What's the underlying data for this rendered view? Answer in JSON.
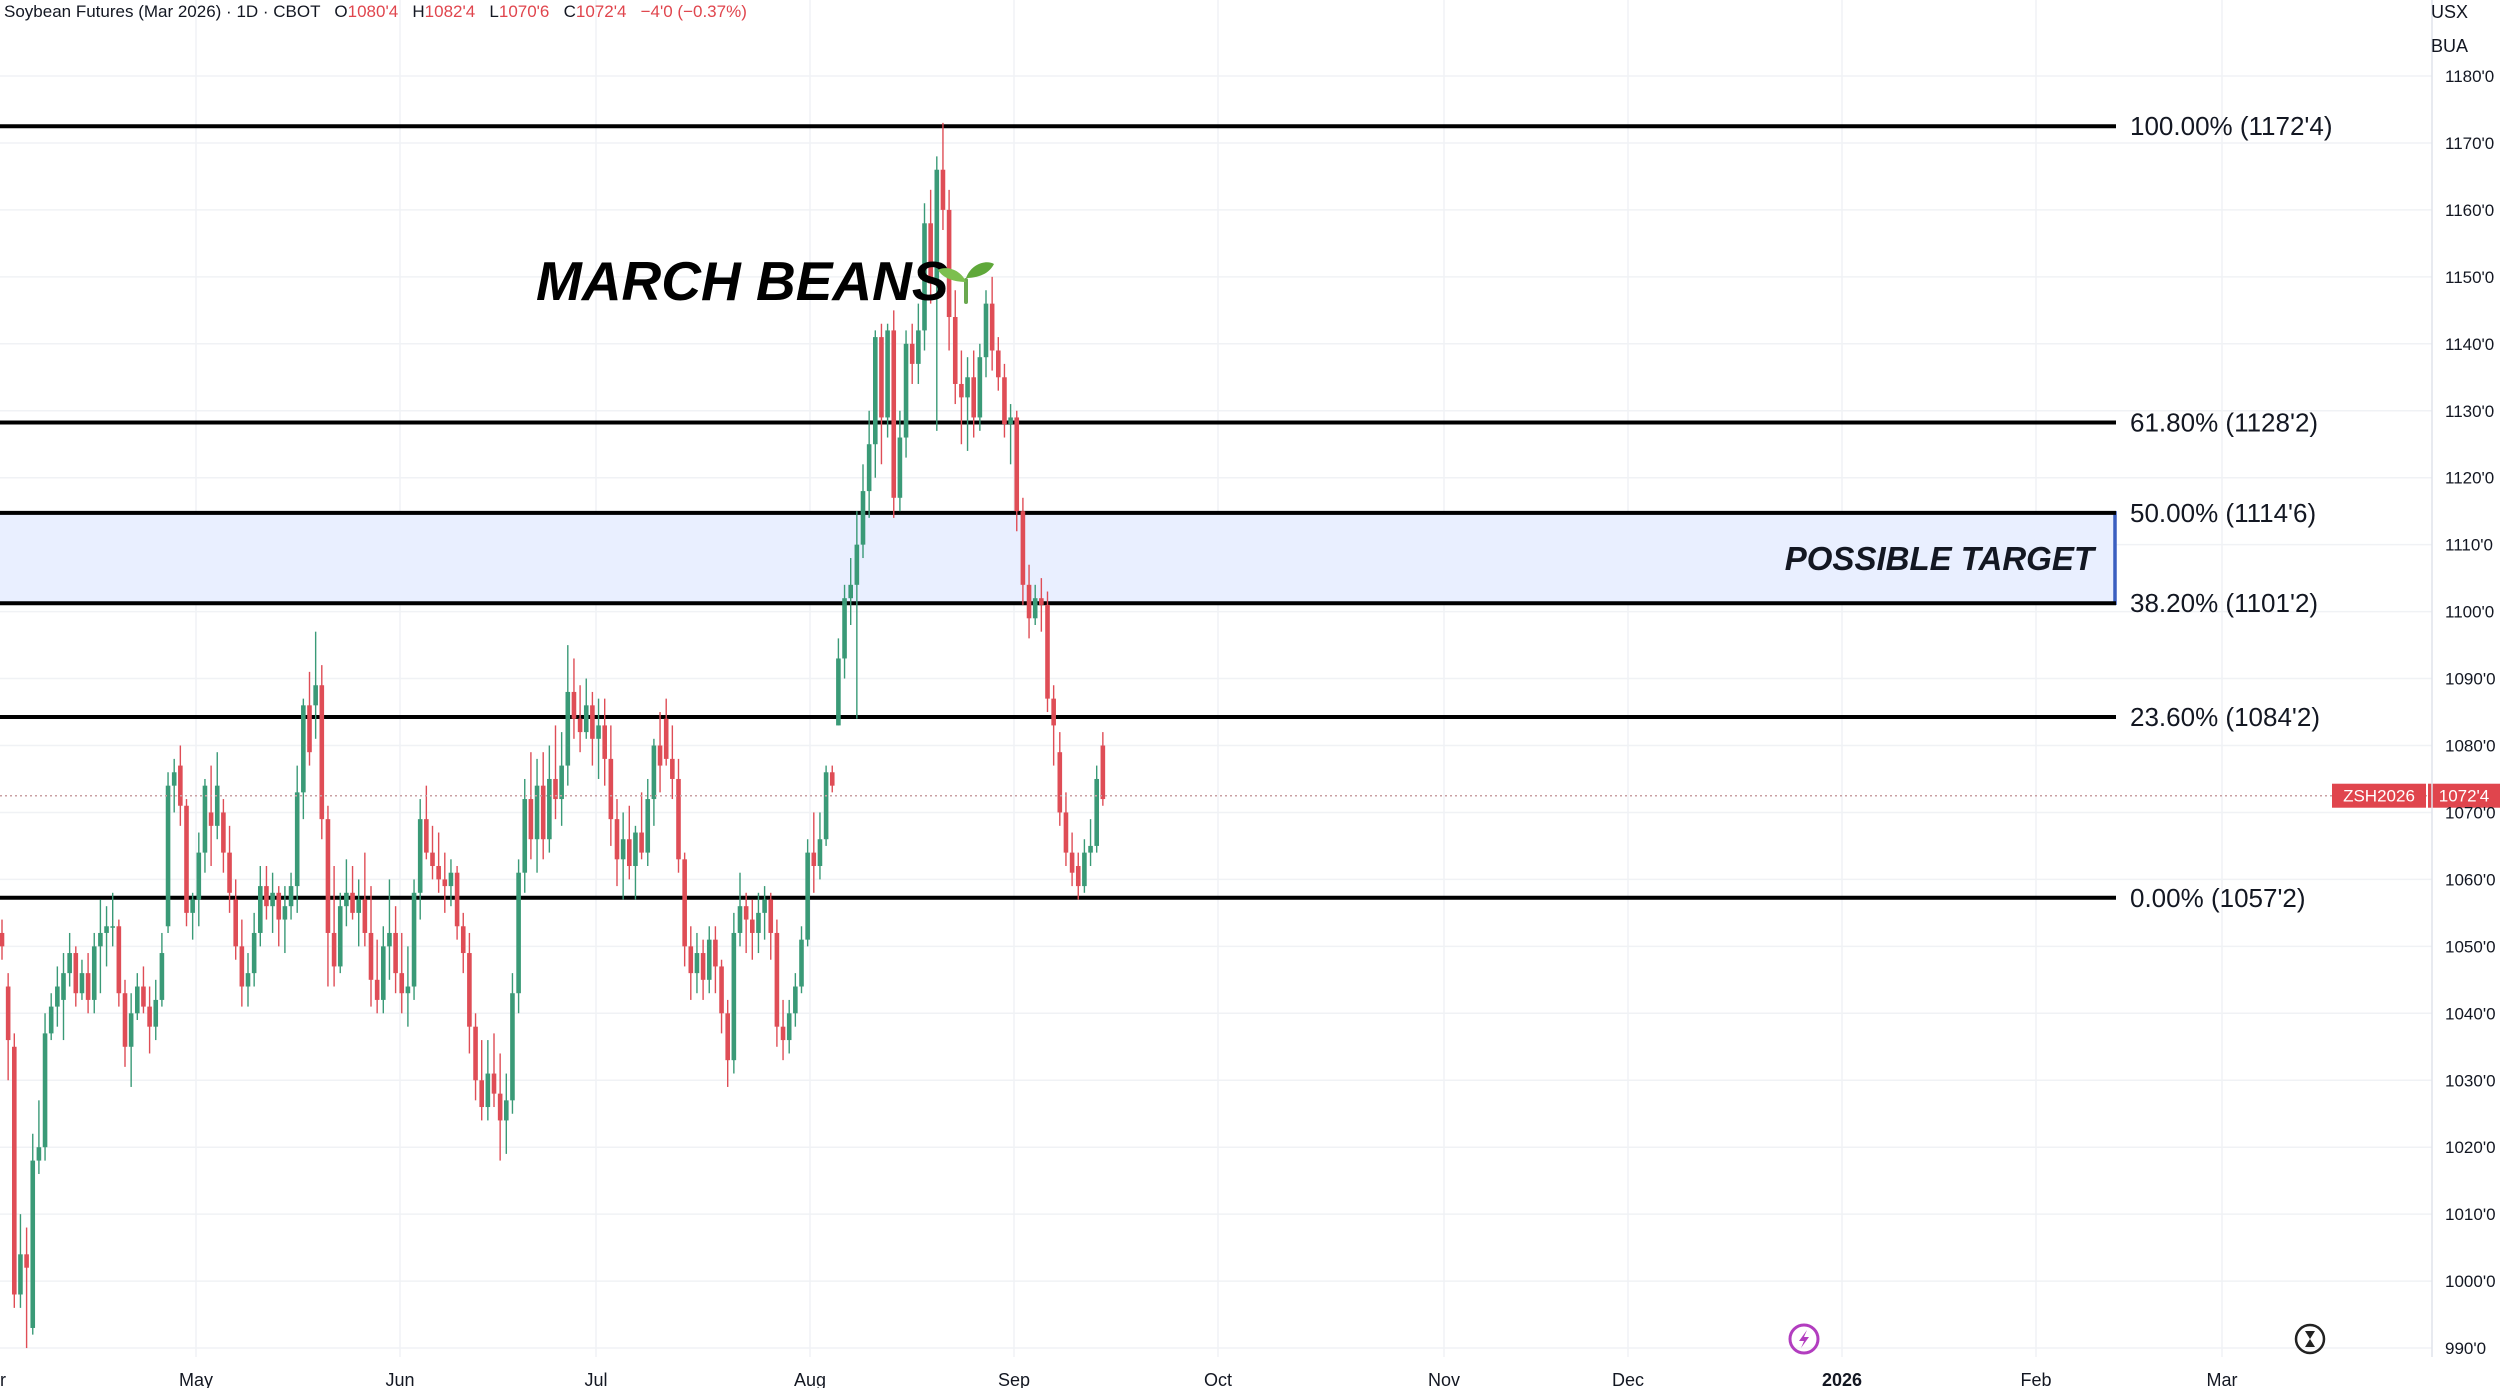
{
  "header": {
    "symbol_text": "Soybean Futures (Mar 2026) · 1D · CBOT",
    "o_label": "O",
    "o_value": "1080'4",
    "h_label": "H",
    "h_value": "1082'4",
    "l_label": "L",
    "l_value": "1070'6",
    "c_label": "C",
    "c_value": "1072'4",
    "change": "−4'0 (−0.37%)"
  },
  "axis_units": [
    "USX",
    "BUA"
  ],
  "colors": {
    "up": "#3a9a77",
    "down": "#df4d56",
    "zone_border": "#3b5fc0",
    "zone_fill": "#e9efff",
    "price_tag": "#e0454d"
  },
  "chart_data": {
    "type": "candlestick",
    "title": "MARCH BEANS",
    "title_icon": "seedling-icon",
    "y_tick_labels": [
      "1180'0",
      "1170'0",
      "1160'0",
      "1150'0",
      "1140'0",
      "1130'0",
      "1120'0",
      "1110'0",
      "1100'0",
      "1090'0",
      "1080'0",
      "1070'0",
      "1060'0",
      "1050'0",
      "1040'0",
      "1030'0",
      "1020'0",
      "1010'0",
      "1000'0",
      "990'0"
    ],
    "y_tick_values": [
      1180,
      1170,
      1160,
      1150,
      1140,
      1130,
      1120,
      1110,
      1100,
      1090,
      1080,
      1070,
      1060,
      1050,
      1040,
      1030,
      1020,
      1010,
      1000,
      990
    ],
    "ylim": [
      990,
      1182
    ],
    "x_labels": [
      "r",
      "May",
      "Jun",
      "Jul",
      "Aug",
      "Sep",
      "Oct",
      "Nov",
      "Dec",
      "2026",
      "Feb",
      "Mar"
    ],
    "fib_levels": [
      {
        "label": "100.00% (1172'4)",
        "value": 1172.5
      },
      {
        "label": "61.80% (1128'2)",
        "value": 1128.25
      },
      {
        "label": "50.00% (1114'6)",
        "value": 1114.75
      },
      {
        "label": "38.20% (1101'2)",
        "value": 1101.25
      },
      {
        "label": "23.60% (1084'2)",
        "value": 1084.25
      },
      {
        "label": "0.00% (1057'2)",
        "value": 1057.25
      }
    ],
    "target_zone": {
      "label": "POSSIBLE TARGET",
      "from": 1101.25,
      "to": 1114.75
    },
    "last_price": {
      "symbol": "ZSH2026",
      "value": 1072.5,
      "label": "1072'4"
    },
    "ohlc": [
      {
        "o": 1052,
        "h": 1054,
        "l": 1048,
        "c": 1050
      },
      {
        "o": 1044,
        "h": 1046,
        "l": 1030,
        "c": 1036
      },
      {
        "o": 1035,
        "h": 1037,
        "l": 996,
        "c": 998
      },
      {
        "o": 998,
        "h": 1010,
        "l": 996,
        "c": 1004
      },
      {
        "o": 1004,
        "h": 1008,
        "l": 990,
        "c": 1002
      },
      {
        "o": 993,
        "h": 1022,
        "l": 992,
        "c": 1018
      },
      {
        "o": 1018,
        "h": 1027,
        "l": 1016,
        "c": 1020
      },
      {
        "o": 1020,
        "h": 1040,
        "l": 1018,
        "c": 1037
      },
      {
        "o": 1037,
        "h": 1043,
        "l": 1036,
        "c": 1041
      },
      {
        "o": 1041,
        "h": 1047,
        "l": 1038,
        "c": 1044
      },
      {
        "o": 1042,
        "h": 1049,
        "l": 1036,
        "c": 1046
      },
      {
        "o": 1046,
        "h": 1052,
        "l": 1044,
        "c": 1049
      },
      {
        "o": 1049,
        "h": 1050,
        "l": 1041,
        "c": 1043
      },
      {
        "o": 1043,
        "h": 1048,
        "l": 1042,
        "c": 1046
      },
      {
        "o": 1046,
        "h": 1049,
        "l": 1040,
        "c": 1042
      },
      {
        "o": 1042,
        "h": 1052,
        "l": 1040,
        "c": 1050
      },
      {
        "o": 1050,
        "h": 1057,
        "l": 1043,
        "c": 1052
      },
      {
        "o": 1052,
        "h": 1056,
        "l": 1047,
        "c": 1053
      },
      {
        "o": 1053,
        "h": 1058,
        "l": 1050,
        "c": 1053
      },
      {
        "o": 1053,
        "h": 1054,
        "l": 1041,
        "c": 1043
      },
      {
        "o": 1043,
        "h": 1045,
        "l": 1032,
        "c": 1035
      },
      {
        "o": 1035,
        "h": 1043,
        "l": 1029,
        "c": 1040
      },
      {
        "o": 1040,
        "h": 1046,
        "l": 1039,
        "c": 1044
      },
      {
        "o": 1044,
        "h": 1047,
        "l": 1040,
        "c": 1041
      },
      {
        "o": 1041,
        "h": 1044,
        "l": 1034,
        "c": 1038
      },
      {
        "o": 1038,
        "h": 1045,
        "l": 1036,
        "c": 1042
      },
      {
        "o": 1042,
        "h": 1052,
        "l": 1041,
        "c": 1049
      },
      {
        "o": 1053,
        "h": 1076,
        "l": 1052,
        "c": 1074
      },
      {
        "o": 1074,
        "h": 1078,
        "l": 1070,
        "c": 1076
      },
      {
        "o": 1077,
        "h": 1080,
        "l": 1068,
        "c": 1071
      },
      {
        "o": 1071,
        "h": 1072,
        "l": 1053,
        "c": 1055
      },
      {
        "o": 1055,
        "h": 1058,
        "l": 1051,
        "c": 1057
      },
      {
        "o": 1057,
        "h": 1067,
        "l": 1053,
        "c": 1064
      },
      {
        "o": 1064,
        "h": 1075,
        "l": 1061,
        "c": 1074
      },
      {
        "o": 1070,
        "h": 1077,
        "l": 1062,
        "c": 1068
      },
      {
        "o": 1068,
        "h": 1079,
        "l": 1066,
        "c": 1074
      },
      {
        "o": 1070,
        "h": 1072,
        "l": 1061,
        "c": 1064
      },
      {
        "o": 1064,
        "h": 1068,
        "l": 1055,
        "c": 1058
      },
      {
        "o": 1057,
        "h": 1060,
        "l": 1048,
        "c": 1050
      },
      {
        "o": 1050,
        "h": 1054,
        "l": 1041,
        "c": 1044
      },
      {
        "o": 1044,
        "h": 1049,
        "l": 1041,
        "c": 1046
      },
      {
        "o": 1046,
        "h": 1055,
        "l": 1044,
        "c": 1052
      },
      {
        "o": 1052,
        "h": 1062,
        "l": 1050,
        "c": 1059
      },
      {
        "o": 1059,
        "h": 1062,
        "l": 1054,
        "c": 1056
      },
      {
        "o": 1056,
        "h": 1061,
        "l": 1052,
        "c": 1058
      },
      {
        "o": 1058,
        "h": 1059,
        "l": 1050,
        "c": 1054
      },
      {
        "o": 1054,
        "h": 1059,
        "l": 1049,
        "c": 1056
      },
      {
        "o": 1056,
        "h": 1061,
        "l": 1054,
        "c": 1059
      },
      {
        "o": 1059,
        "h": 1077,
        "l": 1055,
        "c": 1073
      },
      {
        "o": 1073,
        "h": 1087,
        "l": 1069,
        "c": 1086
      },
      {
        "o": 1086,
        "h": 1091,
        "l": 1077,
        "c": 1079
      },
      {
        "o": 1086,
        "h": 1097,
        "l": 1081,
        "c": 1089
      },
      {
        "o": 1089,
        "h": 1092,
        "l": 1066,
        "c": 1069
      },
      {
        "o": 1069,
        "h": 1071,
        "l": 1044,
        "c": 1052
      },
      {
        "o": 1052,
        "h": 1062,
        "l": 1044,
        "c": 1047
      },
      {
        "o": 1047,
        "h": 1058,
        "l": 1046,
        "c": 1056
      },
      {
        "o": 1056,
        "h": 1063,
        "l": 1053,
        "c": 1058
      },
      {
        "o": 1058,
        "h": 1062,
        "l": 1054,
        "c": 1055
      },
      {
        "o": 1055,
        "h": 1060,
        "l": 1050,
        "c": 1057
      },
      {
        "o": 1057,
        "h": 1064,
        "l": 1050,
        "c": 1052
      },
      {
        "o": 1052,
        "h": 1059,
        "l": 1041,
        "c": 1045
      },
      {
        "o": 1045,
        "h": 1051,
        "l": 1040,
        "c": 1042
      },
      {
        "o": 1042,
        "h": 1053,
        "l": 1040,
        "c": 1050
      },
      {
        "o": 1050,
        "h": 1060,
        "l": 1045,
        "c": 1052
      },
      {
        "o": 1052,
        "h": 1056,
        "l": 1043,
        "c": 1046
      },
      {
        "o": 1046,
        "h": 1052,
        "l": 1040,
        "c": 1043
      },
      {
        "o": 1043,
        "h": 1050,
        "l": 1038,
        "c": 1044
      },
      {
        "o": 1044,
        "h": 1060,
        "l": 1042,
        "c": 1058
      },
      {
        "o": 1058,
        "h": 1072,
        "l": 1054,
        "c": 1069
      },
      {
        "o": 1069,
        "h": 1074,
        "l": 1063,
        "c": 1064
      },
      {
        "o": 1064,
        "h": 1068,
        "l": 1060,
        "c": 1062
      },
      {
        "o": 1062,
        "h": 1067,
        "l": 1058,
        "c": 1060
      },
      {
        "o": 1060,
        "h": 1064,
        "l": 1055,
        "c": 1059
      },
      {
        "o": 1059,
        "h": 1063,
        "l": 1056,
        "c": 1061
      },
      {
        "o": 1061,
        "h": 1062,
        "l": 1051,
        "c": 1053
      },
      {
        "o": 1053,
        "h": 1055,
        "l": 1046,
        "c": 1049
      },
      {
        "o": 1049,
        "h": 1052,
        "l": 1034,
        "c": 1038
      },
      {
        "o": 1038,
        "h": 1040,
        "l": 1027,
        "c": 1030
      },
      {
        "o": 1030,
        "h": 1036,
        "l": 1024,
        "c": 1026
      },
      {
        "o": 1026,
        "h": 1036,
        "l": 1024,
        "c": 1031
      },
      {
        "o": 1031,
        "h": 1037,
        "l": 1026,
        "c": 1028
      },
      {
        "o": 1028,
        "h": 1034,
        "l": 1018,
        "c": 1024
      },
      {
        "o": 1024,
        "h": 1031,
        "l": 1019,
        "c": 1027
      },
      {
        "o": 1027,
        "h": 1046,
        "l": 1025,
        "c": 1043
      },
      {
        "o": 1043,
        "h": 1063,
        "l": 1040,
        "c": 1061
      },
      {
        "o": 1061,
        "h": 1075,
        "l": 1058,
        "c": 1072
      },
      {
        "o": 1072,
        "h": 1079,
        "l": 1063,
        "c": 1066
      },
      {
        "o": 1066,
        "h": 1078,
        "l": 1061,
        "c": 1074
      },
      {
        "o": 1074,
        "h": 1079,
        "l": 1063,
        "c": 1066
      },
      {
        "o": 1066,
        "h": 1080,
        "l": 1064,
        "c": 1075
      },
      {
        "o": 1075,
        "h": 1083,
        "l": 1069,
        "c": 1072
      },
      {
        "o": 1072,
        "h": 1082,
        "l": 1068,
        "c": 1077
      },
      {
        "o": 1077,
        "h": 1095,
        "l": 1074,
        "c": 1088
      },
      {
        "o": 1088,
        "h": 1093,
        "l": 1081,
        "c": 1084
      },
      {
        "o": 1084,
        "h": 1089,
        "l": 1079,
        "c": 1082
      },
      {
        "o": 1082,
        "h": 1090,
        "l": 1081,
        "c": 1086
      },
      {
        "o": 1086,
        "h": 1088,
        "l": 1077,
        "c": 1081
      },
      {
        "o": 1081,
        "h": 1087,
        "l": 1075,
        "c": 1083
      },
      {
        "o": 1083,
        "h": 1087,
        "l": 1074,
        "c": 1078
      },
      {
        "o": 1078,
        "h": 1083,
        "l": 1065,
        "c": 1069
      },
      {
        "o": 1069,
        "h": 1072,
        "l": 1059,
        "c": 1063
      },
      {
        "o": 1063,
        "h": 1070,
        "l": 1057,
        "c": 1066
      },
      {
        "o": 1066,
        "h": 1071,
        "l": 1060,
        "c": 1062
      },
      {
        "o": 1062,
        "h": 1068,
        "l": 1057,
        "c": 1067
      },
      {
        "o": 1067,
        "h": 1073,
        "l": 1063,
        "c": 1064
      },
      {
        "o": 1064,
        "h": 1075,
        "l": 1062,
        "c": 1072
      },
      {
        "o": 1072,
        "h": 1081,
        "l": 1068,
        "c": 1080
      },
      {
        "o": 1080,
        "h": 1085,
        "l": 1073,
        "c": 1077
      },
      {
        "o": 1084,
        "h": 1087,
        "l": 1077,
        "c": 1078
      },
      {
        "o": 1078,
        "h": 1083,
        "l": 1072,
        "c": 1075
      },
      {
        "o": 1075,
        "h": 1078,
        "l": 1061,
        "c": 1063
      },
      {
        "o": 1063,
        "h": 1064,
        "l": 1047,
        "c": 1050
      },
      {
        "o": 1050,
        "h": 1053,
        "l": 1042,
        "c": 1046
      },
      {
        "o": 1046,
        "h": 1052,
        "l": 1043,
        "c": 1049
      },
      {
        "o": 1049,
        "h": 1051,
        "l": 1042,
        "c": 1045
      },
      {
        "o": 1045,
        "h": 1053,
        "l": 1043,
        "c": 1051
      },
      {
        "o": 1051,
        "h": 1053,
        "l": 1043,
        "c": 1047
      },
      {
        "o": 1047,
        "h": 1048,
        "l": 1037,
        "c": 1040
      },
      {
        "o": 1040,
        "h": 1042,
        "l": 1029,
        "c": 1033
      },
      {
        "o": 1033,
        "h": 1055,
        "l": 1031,
        "c": 1052
      },
      {
        "o": 1052,
        "h": 1061,
        "l": 1050,
        "c": 1056
      },
      {
        "o": 1056,
        "h": 1058,
        "l": 1049,
        "c": 1054
      },
      {
        "o": 1054,
        "h": 1057,
        "l": 1048,
        "c": 1052
      },
      {
        "o": 1052,
        "h": 1058,
        "l": 1049,
        "c": 1055
      },
      {
        "o": 1055,
        "h": 1059,
        "l": 1051,
        "c": 1057
      },
      {
        "o": 1057,
        "h": 1058,
        "l": 1048,
        "c": 1052
      },
      {
        "o": 1052,
        "h": 1054,
        "l": 1035,
        "c": 1038
      },
      {
        "o": 1038,
        "h": 1042,
        "l": 1033,
        "c": 1036
      },
      {
        "o": 1036,
        "h": 1042,
        "l": 1034,
        "c": 1040
      },
      {
        "o": 1040,
        "h": 1046,
        "l": 1038,
        "c": 1044
      },
      {
        "o": 1044,
        "h": 1053,
        "l": 1043,
        "c": 1051
      },
      {
        "o": 1051,
        "h": 1066,
        "l": 1050,
        "c": 1064
      },
      {
        "o": 1064,
        "h": 1070,
        "l": 1058,
        "c": 1062
      },
      {
        "o": 1062,
        "h": 1070,
        "l": 1060,
        "c": 1066
      },
      {
        "o": 1066,
        "h": 1077,
        "l": 1065,
        "c": 1076
      },
      {
        "o": 1076,
        "h": 1077,
        "l": 1073,
        "c": 1074
      },
      {
        "o": 1083,
        "h": 1096,
        "l": 1083,
        "c": 1093
      },
      {
        "o": 1093,
        "h": 1104,
        "l": 1090,
        "c": 1102
      },
      {
        "o": 1102,
        "h": 1108,
        "l": 1098,
        "c": 1104
      },
      {
        "o": 1104,
        "h": 1115,
        "l": 1084,
        "c": 1110
      },
      {
        "o": 1110,
        "h": 1122,
        "l": 1108,
        "c": 1118
      },
      {
        "o": 1118,
        "h": 1130,
        "l": 1114,
        "c": 1125
      },
      {
        "o": 1125,
        "h": 1142,
        "l": 1120,
        "c": 1141
      },
      {
        "o": 1141,
        "h": 1143,
        "l": 1122,
        "c": 1129
      },
      {
        "o": 1129,
        "h": 1143,
        "l": 1126,
        "c": 1142
      },
      {
        "o": 1142,
        "h": 1145,
        "l": 1114,
        "c": 1117
      },
      {
        "o": 1117,
        "h": 1130,
        "l": 1115,
        "c": 1126
      },
      {
        "o": 1126,
        "h": 1142,
        "l": 1123,
        "c": 1140
      },
      {
        "o": 1140,
        "h": 1143,
        "l": 1134,
        "c": 1137
      },
      {
        "o": 1137,
        "h": 1146,
        "l": 1134,
        "c": 1142
      },
      {
        "o": 1142,
        "h": 1161,
        "l": 1139,
        "c": 1158
      },
      {
        "o": 1158,
        "h": 1163,
        "l": 1146,
        "c": 1149
      },
      {
        "o": 1149,
        "h": 1168,
        "l": 1127,
        "c": 1166
      },
      {
        "o": 1166,
        "h": 1173,
        "l": 1157,
        "c": 1160
      },
      {
        "o": 1160,
        "h": 1163,
        "l": 1139,
        "c": 1144
      },
      {
        "o": 1144,
        "h": 1148,
        "l": 1131,
        "c": 1134
      },
      {
        "o": 1134,
        "h": 1139,
        "l": 1125,
        "c": 1132
      },
      {
        "o": 1132,
        "h": 1138,
        "l": 1124,
        "c": 1135
      },
      {
        "o": 1135,
        "h": 1139,
        "l": 1126,
        "c": 1129
      },
      {
        "o": 1129,
        "h": 1140,
        "l": 1127,
        "c": 1138
      },
      {
        "o": 1138,
        "h": 1148,
        "l": 1135,
        "c": 1146
      },
      {
        "o": 1146,
        "h": 1150,
        "l": 1136,
        "c": 1139
      },
      {
        "o": 1139,
        "h": 1141,
        "l": 1133,
        "c": 1135
      },
      {
        "o": 1135,
        "h": 1137,
        "l": 1126,
        "c": 1128
      },
      {
        "o": 1128,
        "h": 1131,
        "l": 1122,
        "c": 1129
      },
      {
        "o": 1129,
        "h": 1130,
        "l": 1112,
        "c": 1115
      },
      {
        "o": 1115,
        "h": 1117,
        "l": 1101,
        "c": 1104
      },
      {
        "o": 1104,
        "h": 1107,
        "l": 1096,
        "c": 1099
      },
      {
        "o": 1099,
        "h": 1104,
        "l": 1098,
        "c": 1102
      },
      {
        "o": 1102,
        "h": 1105,
        "l": 1097,
        "c": 1101
      },
      {
        "o": 1101,
        "h": 1103,
        "l": 1085,
        "c": 1087
      },
      {
        "o": 1087,
        "h": 1089,
        "l": 1077,
        "c": 1083
      },
      {
        "o": 1079,
        "h": 1082,
        "l": 1068,
        "c": 1070
      },
      {
        "o": 1070,
        "h": 1073,
        "l": 1062,
        "c": 1064
      },
      {
        "o": 1064,
        "h": 1067,
        "l": 1059,
        "c": 1061
      },
      {
        "o": 1062,
        "h": 1064,
        "l": 1057,
        "c": 1059
      },
      {
        "o": 1059,
        "h": 1066,
        "l": 1058,
        "c": 1064
      },
      {
        "o": 1064,
        "h": 1069,
        "l": 1062,
        "c": 1065
      },
      {
        "o": 1065,
        "h": 1077,
        "l": 1064,
        "c": 1075
      },
      {
        "o": 1080,
        "h": 1082,
        "l": 1071,
        "c": 1072
      }
    ]
  }
}
